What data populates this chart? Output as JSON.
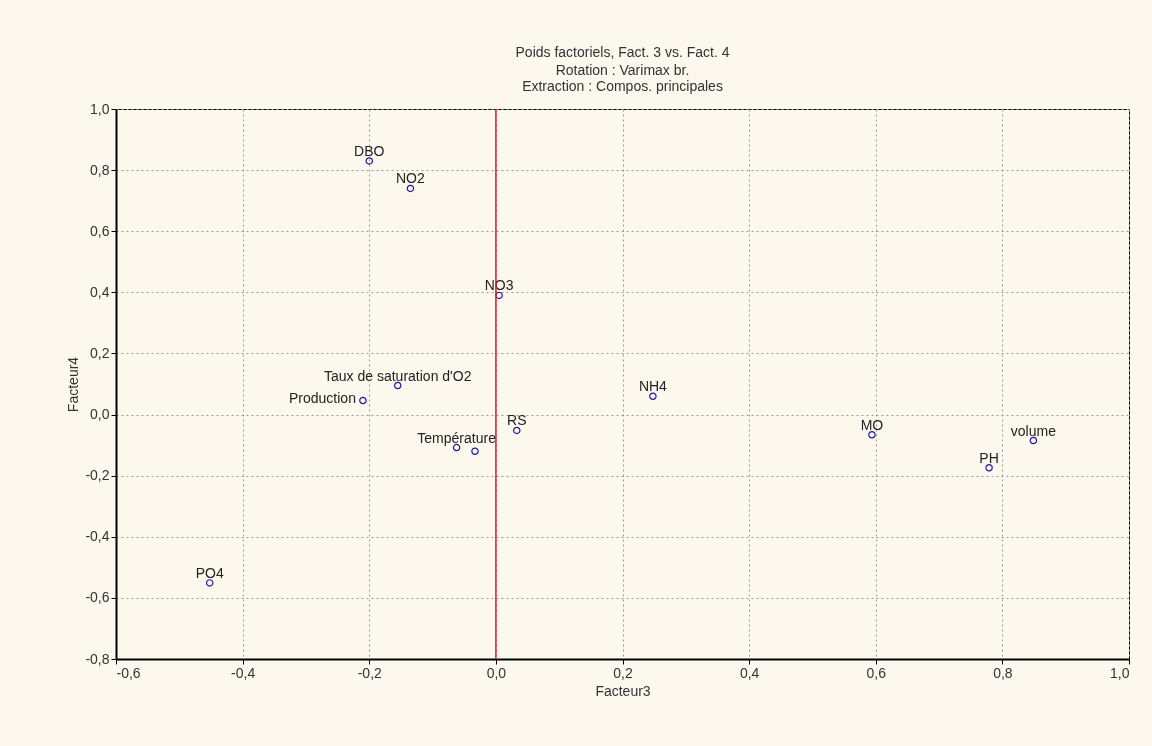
{
  "chart_data": {
    "type": "scatter",
    "title": "Poids factoriels, Fact. 3 vs. Fact. 4",
    "subtitle": "Rotation : Varimax br.\nExtraction : Compos. principales",
    "xlabel": "Facteur3",
    "ylabel": "Facteur4",
    "series": [
      {
        "name": "DBO",
        "color": "#1a1aa8",
        "x": [
          -0.2
        ],
        "values": [
          0.83
        ]
      },
      {
        "name": "NO2",
        "color": "#1a1aa8",
        "x": [
          -0.135
        ],
        "values": [
          0.74
        ]
      },
      {
        "name": "NO3",
        "color": "#1a1aa8",
        "x": [
          0.005
        ],
        "values": [
          0.39
        ]
      },
      {
        "name": "Taux de saturation d'O2",
        "color": "#1a1aa8",
        "x": [
          -0.155
        ],
        "values": [
          0.095
        ]
      },
      {
        "name": "Production",
        "color": "#1a1aa8",
        "x": [
          -0.21
        ],
        "values": [
          0.046
        ]
      },
      {
        "name": "Température",
        "color": "#1a1aa8",
        "x": [
          -0.062
        ],
        "values": [
          -0.108
        ]
      },
      {
        "color": "#1a1aa8",
        "x": [
          -0.033
        ],
        "values": [
          -0.12
        ]
      },
      {
        "name": "RS",
        "color": "#1a1aa8",
        "x": [
          0.033
        ],
        "values": [
          -0.052
        ]
      },
      {
        "name": "NH4",
        "color": "#1a1aa8",
        "x": [
          0.248
        ],
        "values": [
          0.06
        ]
      },
      {
        "name": "MO",
        "color": "#1a1aa8",
        "x": [
          0.594
        ],
        "values": [
          -0.066
        ]
      },
      {
        "name": "volume",
        "color": "#1a1aa8",
        "x": [
          0.849
        ],
        "values": [
          -0.085
        ]
      },
      {
        "name": "PH",
        "color": "#1a1aa8",
        "x": [
          0.779
        ],
        "values": [
          -0.174
        ]
      },
      {
        "name": "PO4",
        "color": "#1a1aa8",
        "x": [
          -0.452
        ],
        "values": [
          -0.551
        ]
      }
    ],
    "marker": "circle",
    "grid": true,
    "xlim": [
      -0.6,
      1.0
    ],
    "ylim": [
      -0.8,
      1.0
    ],
    "xticks": [
      {
        "value": -0.6,
        "label": "-0,6"
      },
      {
        "value": -0.4,
        "label": "-0,4"
      },
      {
        "value": -0.2,
        "label": "-0,2"
      },
      {
        "value": 0,
        "label": "0,0"
      },
      {
        "value": 0.2,
        "label": "0,2"
      },
      {
        "value": 0.4,
        "label": "0,4"
      },
      {
        "value": 0.6,
        "label": "0,6"
      },
      {
        "value": 0.8,
        "label": "0,8"
      },
      {
        "value": 1.0,
        "label": "1,0"
      }
    ],
    "yticks": [
      {
        "value": -0.8,
        "label": "-0,8"
      },
      {
        "value": -0.6,
        "label": "-0,6"
      },
      {
        "value": -0.4,
        "label": "-0,4"
      },
      {
        "value": -0.2,
        "label": "-0,2"
      },
      {
        "value": 0,
        "label": "0,0"
      },
      {
        "value": 0.2,
        "label": "0,2"
      },
      {
        "value": 0.4,
        "label": "0,4"
      },
      {
        "value": 0.6,
        "label": "0,6"
      },
      {
        "value": 0.8,
        "label": "0,8"
      },
      {
        "value": 1.0,
        "label": "1,0"
      }
    ],
    "ref_lines": [
      {
        "axis": "x",
        "value": 0,
        "color": "#e0202a"
      }
    ]
  }
}
